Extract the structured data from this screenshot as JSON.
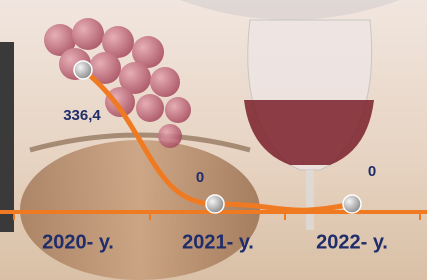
{
  "chart_data": {
    "type": "line",
    "categories": [
      "2020- у.",
      "2021- у.",
      "2022- у."
    ],
    "values": [
      336.4,
      0,
      0
    ],
    "value_labels": [
      "336,4",
      "0",
      "0"
    ],
    "color": "#f07a22"
  }
}
